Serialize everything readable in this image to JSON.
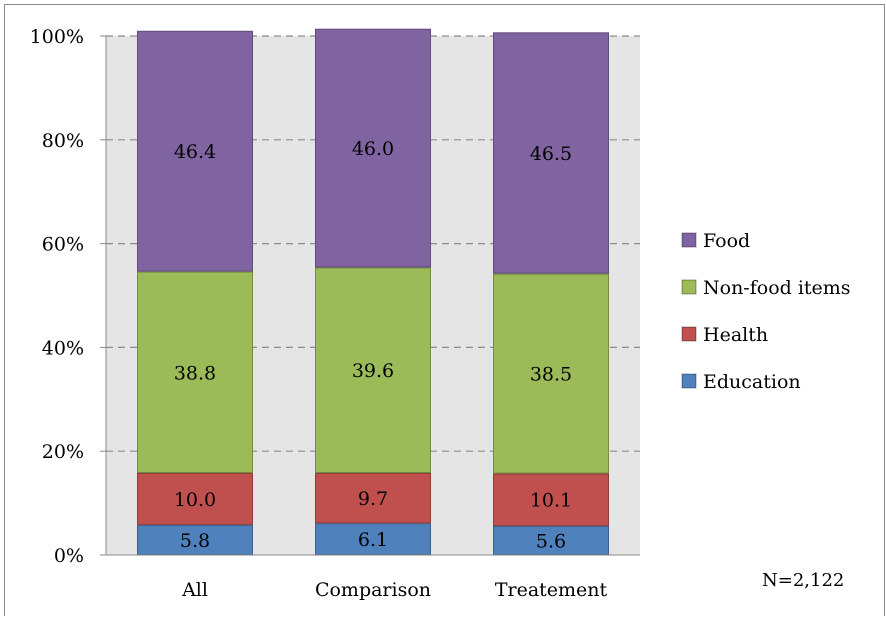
{
  "chart_data": {
    "type": "bar",
    "stacked": true,
    "normalized": true,
    "categories": [
      "All",
      "Comparison",
      "Treatement"
    ],
    "series": [
      {
        "name": "Education",
        "values": [
          5.8,
          6.1,
          5.6
        ],
        "labels": [
          "5.8",
          "6.1",
          "5.6"
        ],
        "color": "#4f81bd"
      },
      {
        "name": "Health",
        "values": [
          10.0,
          9.7,
          10.1
        ],
        "labels": [
          "10.0",
          "9.7",
          "10.1"
        ],
        "color": "#c0504d"
      },
      {
        "name": "Non-food items",
        "values": [
          38.8,
          39.6,
          38.5
        ],
        "labels": [
          "38.8",
          "39.6",
          "38.5"
        ],
        "color": "#9bbb59"
      },
      {
        "name": "Food",
        "values": [
          46.4,
          46.0,
          46.5
        ],
        "labels": [
          "46.4",
          "46.0",
          "46.5"
        ],
        "color": "#8064a2"
      }
    ],
    "yticks": [
      "0%",
      "20%",
      "40%",
      "60%",
      "80%",
      "100%"
    ],
    "ylim": [
      0,
      100
    ],
    "grid": "dashed horizontal",
    "legend_position": "right",
    "legend_order": [
      "Food",
      "Non-food items",
      "Health",
      "Education"
    ],
    "note": "N=2,122"
  }
}
